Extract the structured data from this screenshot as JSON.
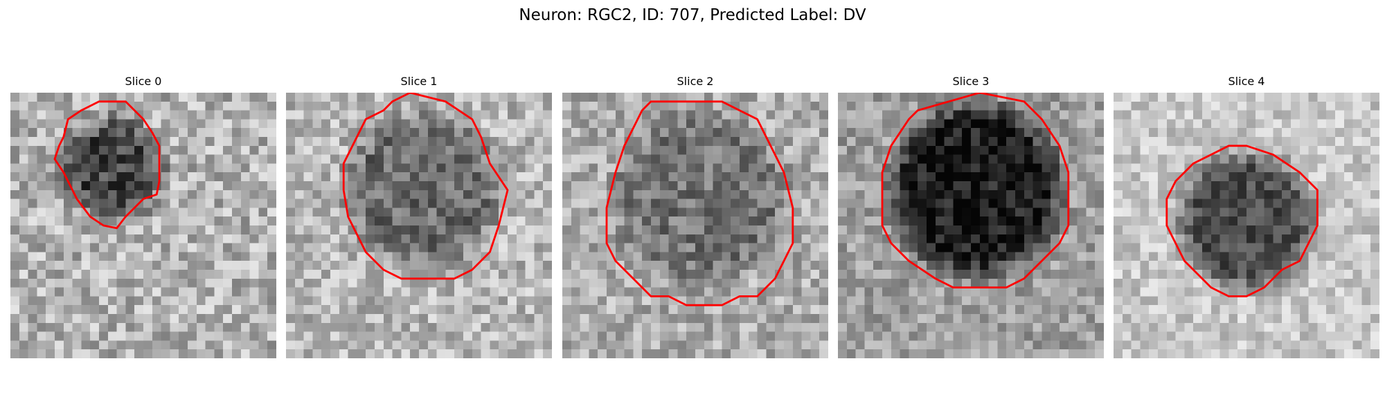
{
  "figure": {
    "title": "Neuron: RGC2, ID: 707, Predicted Label: DV"
  },
  "slices": [
    {
      "title": "Slice 0"
    },
    {
      "title": "Slice 1"
    },
    {
      "title": "Slice 2"
    },
    {
      "title": "Slice 3"
    },
    {
      "title": "Slice 4"
    }
  ],
  "colors": {
    "contour": "#ff0000",
    "colormap": "gray"
  }
}
